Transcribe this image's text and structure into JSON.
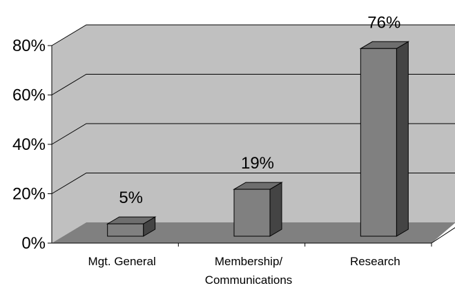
{
  "chart_data": {
    "type": "bar",
    "style": "3d",
    "title": "",
    "xlabel": "",
    "ylabel": "",
    "categories": [
      "Mgt. General",
      "Membership/\nCommunications",
      "Research"
    ],
    "values": [
      5,
      19,
      76
    ],
    "data_labels": [
      "5%",
      "19%",
      "76%"
    ],
    "ylim": [
      0,
      80
    ],
    "yticks": [
      0,
      20,
      40,
      60,
      80
    ],
    "ytick_labels": [
      "0%",
      "20%",
      "40%",
      "60%",
      "80%"
    ],
    "grid": true,
    "legend": "none"
  },
  "colors": {
    "wall": "#c0c0c0",
    "floor": "#808080",
    "bar_front": "#808080",
    "bar_top": "#6e6e6e",
    "bar_side": "#444444",
    "outline": "#000000"
  }
}
